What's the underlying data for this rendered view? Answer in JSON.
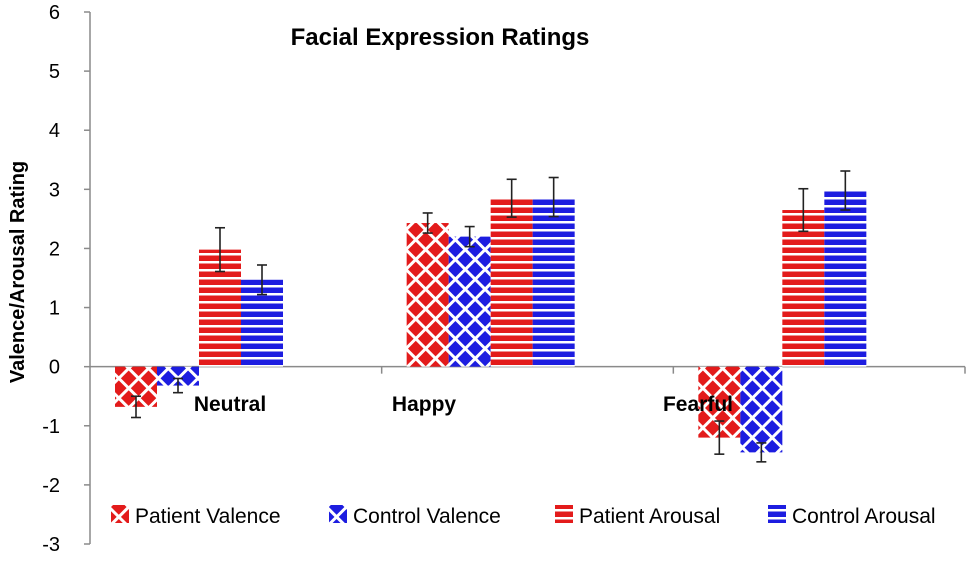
{
  "colors": {
    "red": "#e31b1b",
    "blue": "#1d1de0",
    "axis": "#8a8a8a",
    "error": "#222222"
  },
  "chart_data": {
    "type": "bar",
    "title": "Facial Expression Ratings",
    "xlabel": "",
    "ylabel": "Valence/Arousal Rating",
    "ylim": [
      -3,
      6
    ],
    "yticks": [
      "6",
      "5",
      "4",
      "3",
      "2",
      "1",
      "0",
      "-1",
      "-2",
      "-3"
    ],
    "categories": [
      "Neutral",
      "Happy",
      "Fearful"
    ],
    "series": [
      {
        "name": "Patient Valence",
        "color": "#e31b1b",
        "pattern": "diagonal",
        "values": [
          -0.68,
          2.43,
          -1.2
        ],
        "errors": [
          0.18,
          0.17,
          0.28
        ]
      },
      {
        "name": "Control Valence",
        "color": "#1d1de0",
        "pattern": "diagonal",
        "values": [
          -0.32,
          2.2,
          -1.45
        ],
        "errors": [
          0.12,
          0.17,
          0.16
        ]
      },
      {
        "name": "Patient Arousal",
        "color": "#e31b1b",
        "pattern": "horizontal",
        "values": [
          1.98,
          2.85,
          2.65
        ],
        "errors": [
          0.37,
          0.32,
          0.36
        ]
      },
      {
        "name": "Control Arousal",
        "color": "#1d1de0",
        "pattern": "horizontal",
        "values": [
          1.47,
          2.87,
          2.98
        ],
        "errors": [
          0.25,
          0.33,
          0.33
        ]
      }
    ],
    "legend": "bottom"
  }
}
